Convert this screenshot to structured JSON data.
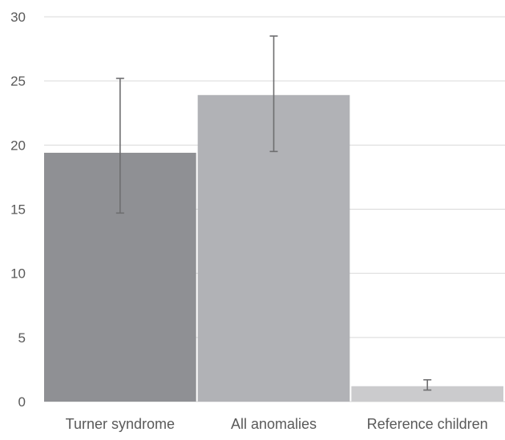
{
  "chart_data": {
    "type": "bar",
    "categories": [
      "Turner syndrome",
      "All anomalies",
      "Reference children"
    ],
    "values": [
      19.4,
      23.9,
      1.2
    ],
    "error_low": [
      14.7,
      19.5,
      0.9
    ],
    "error_high": [
      25.2,
      28.5,
      1.7
    ],
    "bar_colors": [
      "#8f9094",
      "#b1b2b6",
      "#cbcbcd"
    ],
    "y_ticks": [
      "0",
      "5",
      "10",
      "15",
      "20",
      "25",
      "30"
    ],
    "ylim": [
      0,
      30
    ],
    "grid": true,
    "title": "",
    "xlabel": "",
    "ylabel": ""
  }
}
